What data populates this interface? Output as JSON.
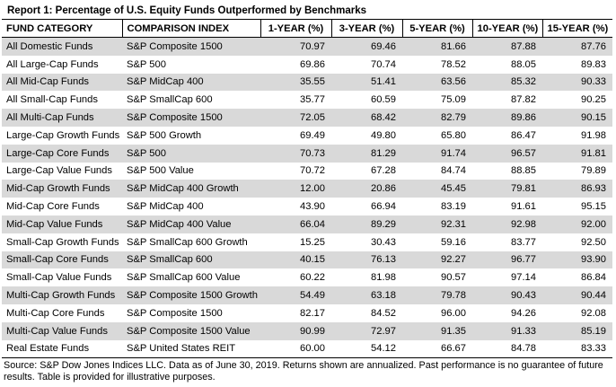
{
  "title": "Report 1: Percentage of U.S. Equity Funds Outperformed by Benchmarks",
  "columns": [
    "FUND CATEGORY",
    "COMPARISON INDEX",
    "1-YEAR (%)",
    "3-YEAR (%)",
    "5-YEAR (%)",
    "10-YEAR (%)",
    "15-YEAR (%)"
  ],
  "rows": [
    {
      "category": "All Domestic Funds",
      "index": "S&P Composite 1500",
      "y1": "70.97",
      "y3": "69.46",
      "y5": "81.66",
      "y10": "87.88",
      "y15": "87.76"
    },
    {
      "category": "All Large-Cap Funds",
      "index": "S&P 500",
      "y1": "69.86",
      "y3": "70.74",
      "y5": "78.52",
      "y10": "88.05",
      "y15": "89.83"
    },
    {
      "category": "All Mid-Cap Funds",
      "index": "S&P MidCap 400",
      "y1": "35.55",
      "y3": "51.41",
      "y5": "63.56",
      "y10": "85.32",
      "y15": "90.33"
    },
    {
      "category": "All Small-Cap Funds",
      "index": "S&P SmallCap 600",
      "y1": "35.77",
      "y3": "60.59",
      "y5": "75.09",
      "y10": "87.82",
      "y15": "90.25"
    },
    {
      "category": "All Multi-Cap Funds",
      "index": "S&P Composite 1500",
      "y1": "72.05",
      "y3": "68.42",
      "y5": "82.79",
      "y10": "89.86",
      "y15": "90.15"
    },
    {
      "category": "Large-Cap Growth Funds",
      "index": "S&P 500 Growth",
      "y1": "69.49",
      "y3": "49.80",
      "y5": "65.80",
      "y10": "86.47",
      "y15": "91.98"
    },
    {
      "category": "Large-Cap Core Funds",
      "index": "S&P 500",
      "y1": "70.73",
      "y3": "81.29",
      "y5": "91.74",
      "y10": "96.57",
      "y15": "91.81"
    },
    {
      "category": "Large-Cap Value Funds",
      "index": "S&P 500 Value",
      "y1": "70.72",
      "y3": "67.28",
      "y5": "84.74",
      "y10": "88.85",
      "y15": "79.89"
    },
    {
      "category": "Mid-Cap Growth Funds",
      "index": "S&P MidCap 400 Growth",
      "y1": "12.00",
      "y3": "20.86",
      "y5": "45.45",
      "y10": "79.81",
      "y15": "86.93"
    },
    {
      "category": "Mid-Cap Core Funds",
      "index": "S&P MidCap 400",
      "y1": "43.90",
      "y3": "66.94",
      "y5": "83.19",
      "y10": "91.61",
      "y15": "95.15"
    },
    {
      "category": "Mid-Cap Value Funds",
      "index": "S&P MidCap 400 Value",
      "y1": "66.04",
      "y3": "89.29",
      "y5": "92.31",
      "y10": "92.98",
      "y15": "92.00"
    },
    {
      "category": "Small-Cap Growth Funds",
      "index": "S&P SmallCap 600 Growth",
      "y1": "15.25",
      "y3": "30.43",
      "y5": "59.16",
      "y10": "83.77",
      "y15": "92.50"
    },
    {
      "category": "Small-Cap Core Funds",
      "index": "S&P SmallCap 600",
      "y1": "40.15",
      "y3": "76.13",
      "y5": "92.27",
      "y10": "96.77",
      "y15": "93.90"
    },
    {
      "category": "Small-Cap Value Funds",
      "index": "S&P SmallCap 600 Value",
      "y1": "60.22",
      "y3": "81.98",
      "y5": "90.57",
      "y10": "97.14",
      "y15": "86.84"
    },
    {
      "category": "Multi-Cap Growth Funds",
      "index": "S&P Composite 1500 Growth",
      "y1": "54.49",
      "y3": "63.18",
      "y5": "79.78",
      "y10": "90.43",
      "y15": "90.44"
    },
    {
      "category": "Multi-Cap Core Funds",
      "index": "S&P Composite 1500",
      "y1": "82.17",
      "y3": "84.52",
      "y5": "96.00",
      "y10": "94.26",
      "y15": "92.08"
    },
    {
      "category": "Multi-Cap Value Funds",
      "index": "S&P Composite 1500 Value",
      "y1": "90.99",
      "y3": "72.97",
      "y5": "91.35",
      "y10": "91.33",
      "y15": "85.19"
    },
    {
      "category": "Real Estate Funds",
      "index": "S&P United States REIT",
      "y1": "60.00",
      "y3": "54.12",
      "y5": "66.67",
      "y10": "84.78",
      "y15": "83.33"
    }
  ],
  "footnote": "Source: S&P Dow Jones Indices LLC. Data as of June 30, 2019. Returns shown are annualized. Past performance is no guarantee of future results. Table is provided for illustrative purposes.",
  "colors": {
    "shaded_row": "#d9d9d9",
    "border": "#000000"
  }
}
